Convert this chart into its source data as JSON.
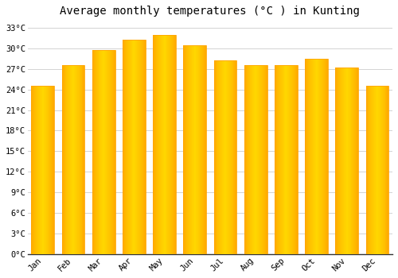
{
  "title": "Average monthly temperatures (°C ) in Kunting",
  "months": [
    "Jan",
    "Feb",
    "Mar",
    "Apr",
    "May",
    "Jun",
    "Jul",
    "Aug",
    "Sep",
    "Oct",
    "Nov",
    "Dec"
  ],
  "values": [
    24.5,
    27.5,
    29.8,
    31.2,
    32.0,
    30.5,
    28.2,
    27.5,
    27.5,
    28.5,
    27.2,
    24.5
  ],
  "bar_color_center": "#FFD700",
  "bar_color_edge": "#FFA500",
  "background_color": "#FFFFFF",
  "grid_color": "#CCCCCC",
  "ylim": [
    0,
    34
  ],
  "ytick_step": 3,
  "title_fontsize": 10,
  "tick_fontsize": 7.5,
  "font_family": "monospace"
}
